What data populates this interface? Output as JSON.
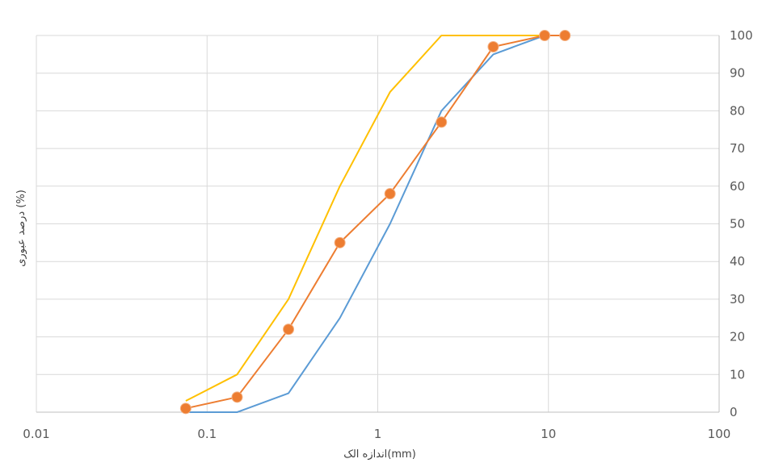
{
  "chart_data": {
    "type": "line",
    "xlabel": "اندازه الک(mm)",
    "ylabel": "درصد عبوری (%)",
    "x_scale": "log",
    "xlim": [
      0.01,
      100
    ],
    "ylim": [
      0,
      100
    ],
    "x_ticks": [
      "0.01",
      "0.1",
      "1",
      "10",
      "100"
    ],
    "y_ticks": [
      "0",
      "10",
      "20",
      "30",
      "40",
      "50",
      "60",
      "70",
      "80",
      "90",
      "100"
    ],
    "y_axis_side": "right",
    "grid": true,
    "legend": "none",
    "series": [
      {
        "color": "#5B9BD5",
        "marker": "none",
        "x": [
          0.075,
          0.15,
          0.3,
          0.6,
          1.18,
          2.36,
          4.75,
          9.5,
          12.5
        ],
        "y": [
          0,
          0,
          5,
          25,
          50,
          80,
          95,
          100,
          100
        ]
      },
      {
        "color": "#FFC000",
        "marker": "none",
        "x": [
          0.075,
          0.15,
          0.3,
          0.6,
          1.18,
          2.36,
          4.75,
          9.5,
          12.5
        ],
        "y": [
          3,
          10,
          30,
          60,
          85,
          100,
          100,
          100,
          100
        ]
      },
      {
        "color": "#ED7D31",
        "marker": "circle",
        "x": [
          0.075,
          0.15,
          0.3,
          0.6,
          1.18,
          2.36,
          4.75,
          9.5,
          12.5
        ],
        "y": [
          1,
          4,
          22,
          45,
          58,
          77,
          97,
          100,
          100
        ]
      }
    ]
  }
}
